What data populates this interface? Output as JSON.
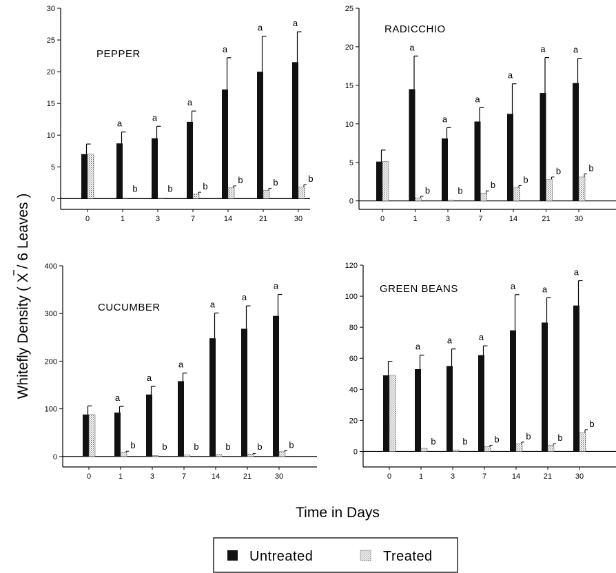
{
  "figure": {
    "ylabel": "Whitefly Density ( X / 6 Leaves )",
    "xlabel": "Time in Days",
    "legend": [
      {
        "label": "Untreated",
        "color": "#111111",
        "pattern": "solid"
      },
      {
        "label": "Treated",
        "color": "#bbbbbb",
        "pattern": "stipple"
      }
    ]
  },
  "chart_data": [
    {
      "type": "bar",
      "title": "PEPPER",
      "categories": [
        "0",
        "1",
        "3",
        "7",
        "14",
        "21",
        "30"
      ],
      "ylim": [
        -1.7,
        30
      ],
      "yticks": [
        "0",
        "5",
        "10",
        "15",
        "20",
        "25",
        "30"
      ],
      "series": [
        {
          "name": "Untreated",
          "values": [
            7,
            8.7,
            9.5,
            12.1,
            17.2,
            20,
            21.5
          ],
          "errors": [
            1.6,
            1.8,
            1.9,
            1.7,
            5.0,
            5.6,
            4.8
          ],
          "sig": [
            "",
            "a",
            "a",
            "a",
            "a",
            "a",
            "a"
          ]
        },
        {
          "name": "Treated",
          "values": [
            7,
            0.1,
            0.1,
            0.7,
            1.7,
            1.3,
            1.8
          ],
          "errors": [
            0,
            0,
            0,
            0.3,
            0.3,
            0.3,
            0.4
          ],
          "sig": [
            "",
            "b",
            "b",
            "b",
            "b",
            "b",
            "b"
          ]
        }
      ]
    },
    {
      "type": "bar",
      "title": "RADICCHIO",
      "categories": [
        "0",
        "1",
        "3",
        "7",
        "14",
        "21",
        "30"
      ],
      "ylim": [
        -1.1,
        25
      ],
      "yticks": [
        "0",
        "5",
        "10",
        "15",
        "20",
        "25"
      ],
      "series": [
        {
          "name": "Untreated",
          "values": [
            5.1,
            14.5,
            8.1,
            10.3,
            11.3,
            14,
            15.3
          ],
          "errors": [
            1.5,
            4.3,
            1.4,
            1.8,
            3.9,
            4.6,
            3.2
          ],
          "sig": [
            "",
            "a",
            "a",
            "a",
            "a",
            "a",
            "a"
          ]
        },
        {
          "name": "Treated",
          "values": [
            5.1,
            0.4,
            0.1,
            1.0,
            1.7,
            2.8,
            3.1
          ],
          "errors": [
            0,
            0.2,
            0,
            0.3,
            0.3,
            0.3,
            0.4
          ],
          "sig": [
            "",
            "b",
            "b",
            "b",
            "b",
            "b",
            "b"
          ]
        }
      ]
    },
    {
      "type": "bar",
      "title": "CUCUMBER",
      "categories": [
        "0",
        "1",
        "3",
        "7",
        "14",
        "21",
        "30"
      ],
      "ylim": [
        -22,
        400
      ],
      "yticks": [
        "0",
        "100",
        "200",
        "300",
        "400"
      ],
      "series": [
        {
          "name": "Untreated",
          "values": [
            88,
            92,
            130,
            158,
            248,
            268,
            295
          ],
          "errors": [
            18,
            13,
            17,
            17,
            53,
            48,
            45
          ],
          "sig": [
            "",
            "a",
            "a",
            "a",
            "a",
            "a",
            "a"
          ]
        },
        {
          "name": "Treated",
          "values": [
            88,
            9,
            2,
            3,
            4,
            5,
            10
          ],
          "errors": [
            0,
            2,
            0,
            0,
            0,
            1,
            2
          ],
          "sig": [
            "",
            "b",
            "b",
            "b",
            "b",
            "b",
            "b"
          ]
        }
      ]
    },
    {
      "type": "bar",
      "title": "GREEN BEANS",
      "categories": [
        "0",
        "1",
        "3",
        "7",
        "14",
        "21",
        "30"
      ],
      "ylim": [
        -10,
        120
      ],
      "yticks": [
        "0",
        "20",
        "40",
        "60",
        "80",
        "100",
        "120"
      ],
      "series": [
        {
          "name": "Untreated",
          "values": [
            49,
            53,
            55,
            62,
            78,
            83,
            94
          ],
          "errors": [
            9,
            9,
            11,
            6,
            23,
            16,
            16
          ],
          "sig": [
            "",
            "a",
            "a",
            "a",
            "a",
            "a",
            "a"
          ]
        },
        {
          "name": "Treated",
          "values": [
            49,
            2,
            1,
            3,
            5,
            4,
            12
          ],
          "errors": [
            0,
            0,
            0,
            1,
            1,
            1,
            2
          ],
          "sig": [
            "",
            "b",
            "b",
            "b",
            "b",
            "b",
            "b"
          ]
        }
      ]
    }
  ]
}
